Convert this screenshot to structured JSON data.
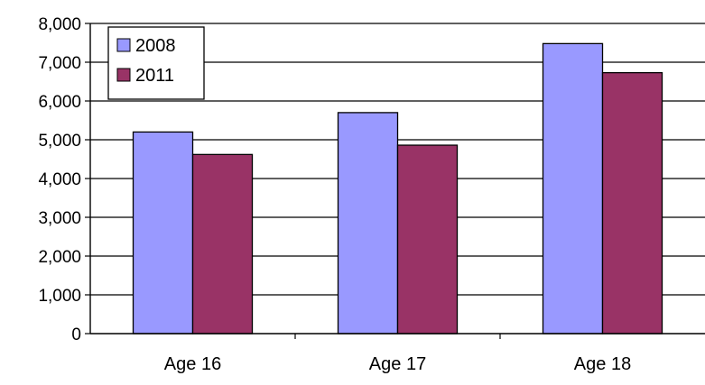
{
  "chart_data": {
    "type": "bar",
    "categories": [
      "Age 16",
      "Age 17",
      "Age 18"
    ],
    "series": [
      {
        "name": "2008",
        "values": [
          5200,
          5700,
          7480
        ],
        "color": "#9999FF"
      },
      {
        "name": "2011",
        "values": [
          4620,
          4860,
          6730
        ],
        "color": "#993366"
      }
    ],
    "yticks": [
      "0",
      "1,000",
      "2,000",
      "3,000",
      "4,000",
      "5,000",
      "6,000",
      "7,000",
      "8,000"
    ],
    "ylim": [
      0,
      8000
    ],
    "ystep": 1000,
    "grid": true,
    "legend_position": "top-left",
    "title": "",
    "xlabel": "",
    "ylabel": ""
  }
}
